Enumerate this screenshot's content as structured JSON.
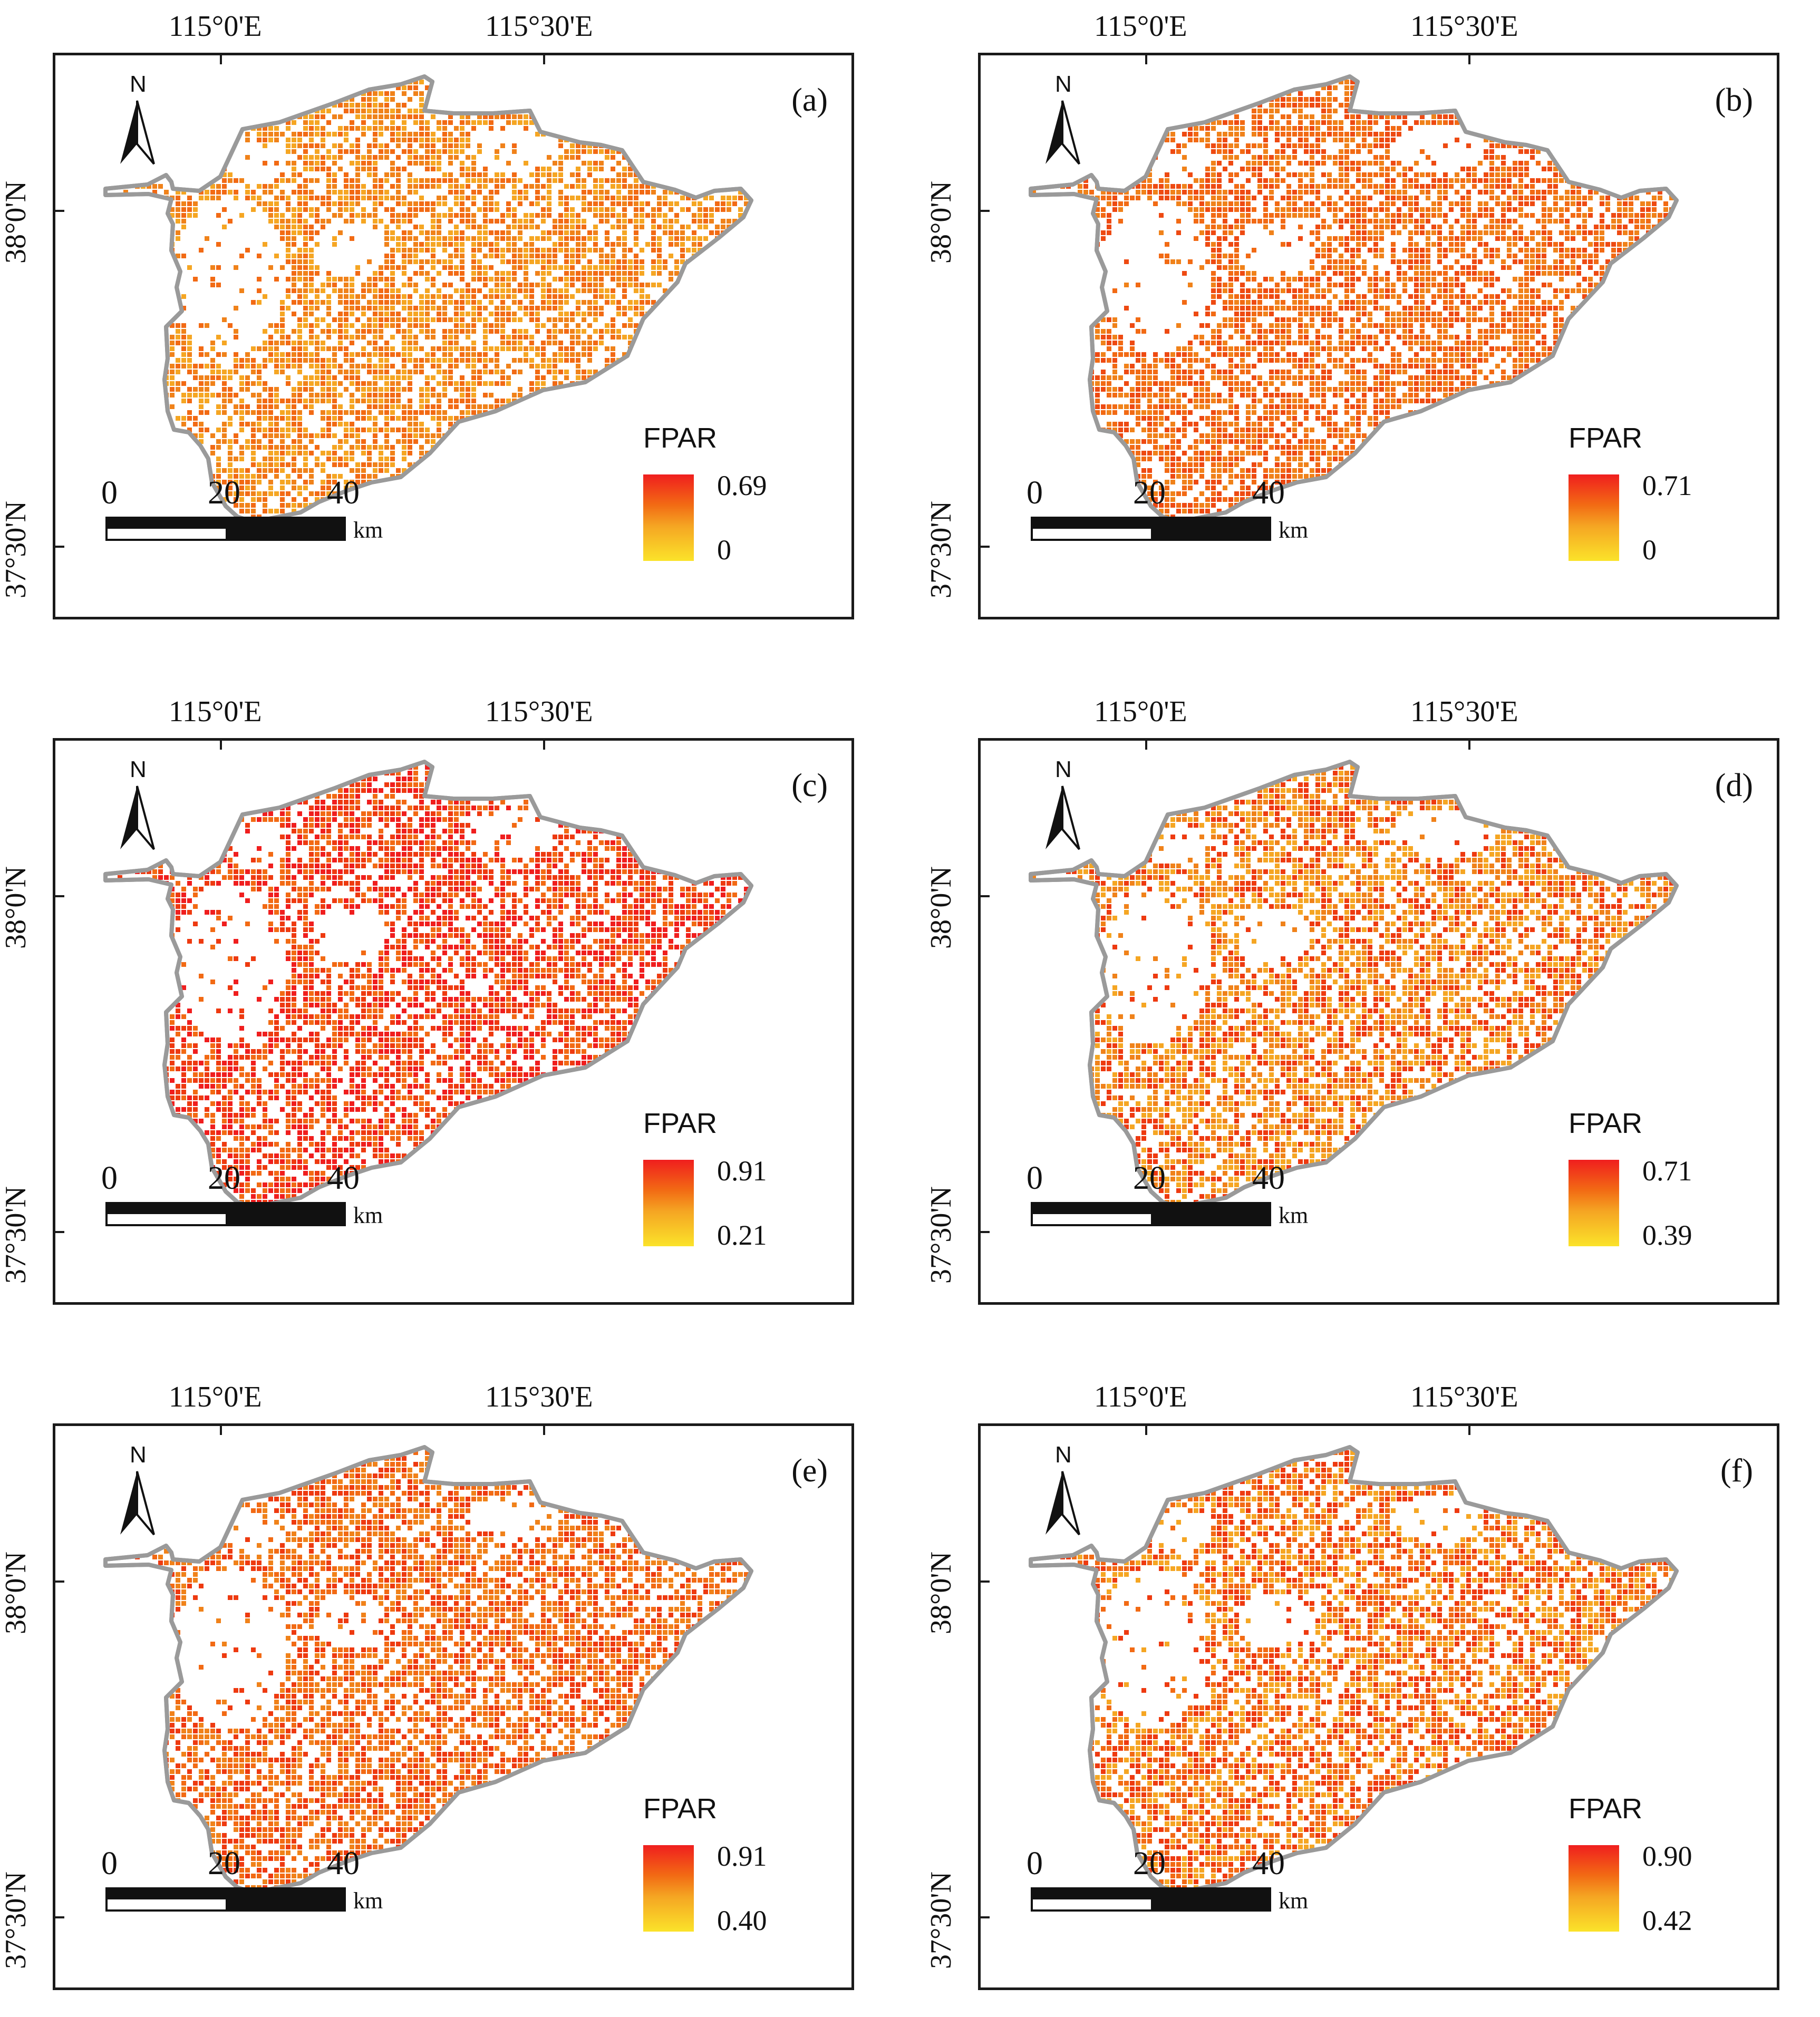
{
  "figure": {
    "panels": [
      {
        "label": "(a)",
        "legend_title": "FPAR",
        "max": "0.69",
        "min": "0",
        "palette": [
          "#f5a623",
          "#f0821a",
          "#f26a14"
        ],
        "lon_labels": [
          "115°0'E",
          "115°30'E"
        ],
        "lat_labels": [
          "38°0'N",
          "37°30'N"
        ],
        "north": "N",
        "scale_numbers": [
          "0",
          "20",
          "40"
        ],
        "scale_unit": "km"
      },
      {
        "label": "(b)",
        "legend_title": "FPAR",
        "max": "0.71",
        "min": "0",
        "palette": [
          "#f26a14",
          "#ee4a12",
          "#f0821a"
        ],
        "lon_labels": [
          "115°0'E",
          "115°30'E"
        ],
        "lat_labels": [
          "38°0'N",
          "37°30'N"
        ],
        "north": "N",
        "scale_numbers": [
          "0",
          "20",
          "40"
        ],
        "scale_unit": "km"
      },
      {
        "label": "(c)",
        "legend_title": "FPAR",
        "max": "0.91",
        "min": "0.21",
        "palette": [
          "#ee3a10",
          "#f01e1e",
          "#f26a14"
        ],
        "lon_labels": [
          "115°0'E",
          "115°30'E"
        ],
        "lat_labels": [
          "38°0'N",
          "37°30'N"
        ],
        "north": "N",
        "scale_numbers": [
          "0",
          "20",
          "40"
        ],
        "scale_unit": "km"
      },
      {
        "label": "(d)",
        "legend_title": "FPAR",
        "max": "0.71",
        "min": "0.39",
        "palette": [
          "#f0821a",
          "#f5a623",
          "#ee3a10"
        ],
        "lon_labels": [
          "115°0'E",
          "115°30'E"
        ],
        "lat_labels": [
          "38°0'N",
          "37°30'N"
        ],
        "north": "N",
        "scale_numbers": [
          "0",
          "20",
          "40"
        ],
        "scale_unit": "km"
      },
      {
        "label": "(e)",
        "legend_title": "FPAR",
        "max": "0.91",
        "min": "0.40",
        "palette": [
          "#ee3a10",
          "#f26a14",
          "#f0821a"
        ],
        "lon_labels": [
          "115°0'E",
          "115°30'E"
        ],
        "lat_labels": [
          "38°0'N",
          "37°30'N"
        ],
        "north": "N",
        "scale_numbers": [
          "0",
          "20",
          "40"
        ],
        "scale_unit": "km"
      },
      {
        "label": "(f)",
        "legend_title": "FPAR",
        "max": "0.90",
        "min": "0.42",
        "palette": [
          "#f26a14",
          "#f5a623",
          "#ee3a10"
        ],
        "lon_labels": [
          "115°0'E",
          "115°30'E"
        ],
        "lat_labels": [
          "38°0'N",
          "37°30'N"
        ],
        "north": "N",
        "scale_numbers": [
          "0",
          "20",
          "40"
        ],
        "scale_unit": "km"
      }
    ],
    "colors": {
      "frame": "#1a1a1a",
      "outline": "#9a9a9a",
      "high": "#f01e1e",
      "mid": "#f5a623",
      "low": "#fbe32a"
    }
  }
}
